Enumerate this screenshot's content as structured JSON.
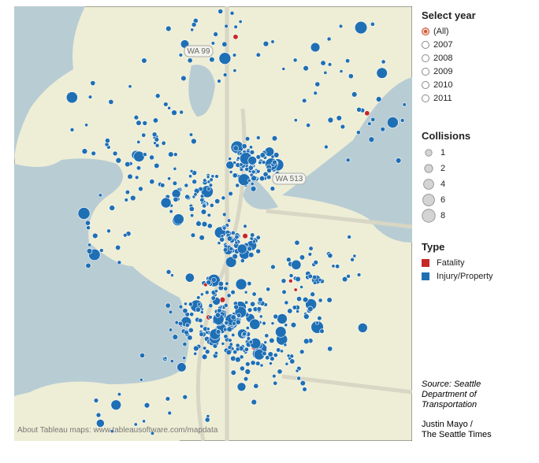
{
  "filters": {
    "title": "Select year",
    "options": [
      "(All)",
      "2007",
      "2008",
      "2009",
      "2010",
      "2011"
    ],
    "selected": 0
  },
  "size_legend": {
    "title": "Collisions",
    "values": [
      1,
      2,
      4,
      6,
      8
    ]
  },
  "type_legend": {
    "title": "Type",
    "items": [
      {
        "label": "Fatality",
        "color": "#c62828"
      },
      {
        "label": "Injury/Property",
        "color": "#1f6fb4"
      }
    ]
  },
  "map": {
    "labels": [
      "WA 99",
      "WA 513"
    ],
    "attribution": "About Tableau maps: www.tableausoftware.com/mapdata"
  },
  "source": "Source: Seattle Department of Transportation",
  "credit": [
    "Justin Mayo /",
    "The Seattle Times"
  ]
}
